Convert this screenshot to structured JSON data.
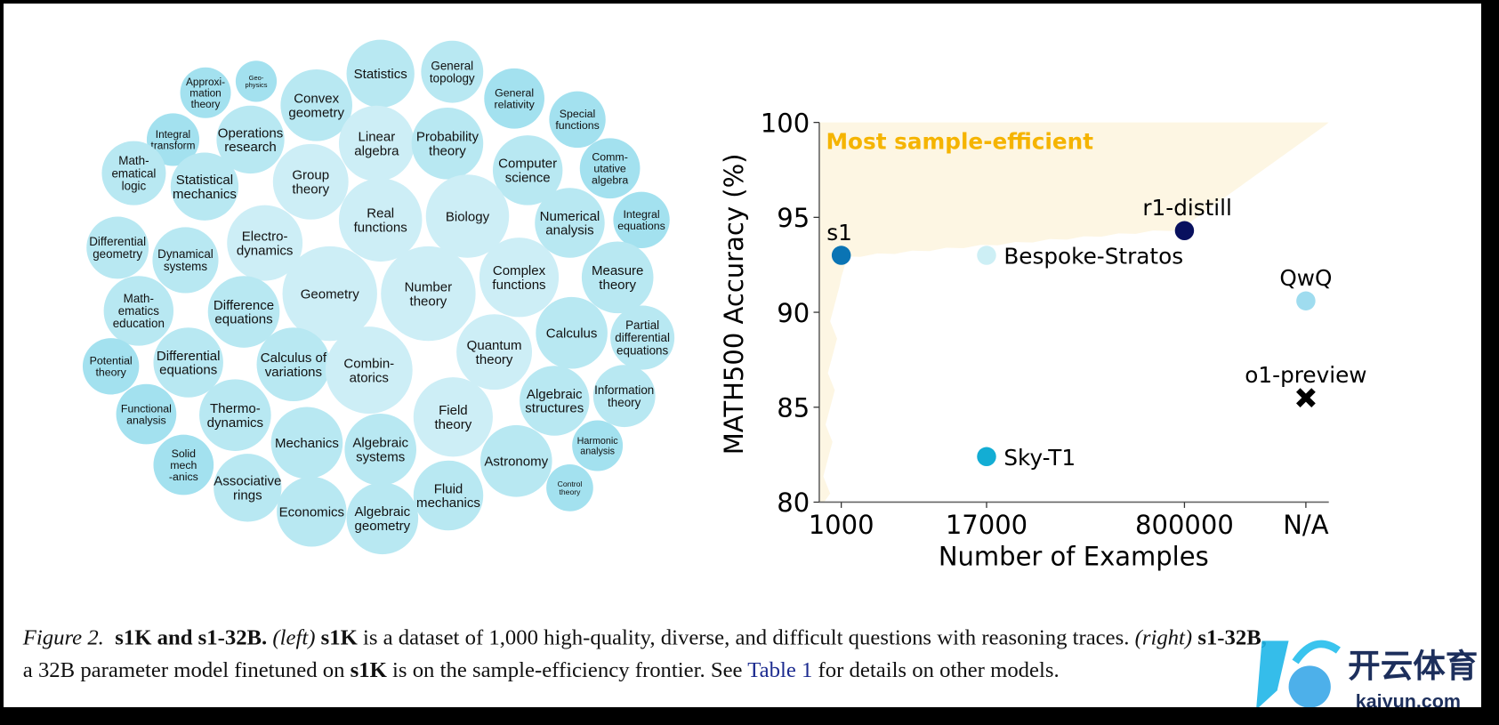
{
  "bubble_chart": {
    "palette": {
      "large": "#cdeef6",
      "medium": "#b8e8f2",
      "small": "#a3e1ef"
    },
    "bubbles": [
      {
        "label": [
          "Statistics"
        ],
        "cx": 398,
        "cy": 77,
        "r": 36
      },
      {
        "label": [
          "General",
          "topology"
        ],
        "cx": 473,
        "cy": 75,
        "r": 33
      },
      {
        "label": [
          "Approxi-",
          "mation",
          "theory"
        ],
        "cx": 215,
        "cy": 97,
        "r": 27
      },
      {
        "label": [
          "Geo-",
          "physics"
        ],
        "cx": 268,
        "cy": 85,
        "r": 22
      },
      {
        "label": [
          "Convex",
          "geometry"
        ],
        "cx": 331,
        "cy": 110,
        "r": 38
      },
      {
        "label": [
          "General",
          "relativity"
        ],
        "cx": 538,
        "cy": 103,
        "r": 32
      },
      {
        "label": [
          "Special",
          "functions"
        ],
        "cx": 604,
        "cy": 125,
        "r": 30
      },
      {
        "label": [
          "Integral",
          "transform"
        ],
        "cx": 181,
        "cy": 146,
        "r": 28
      },
      {
        "label": [
          "Operations",
          "research"
        ],
        "cx": 262,
        "cy": 146,
        "r": 36
      },
      {
        "label": [
          "Linear",
          "algebra"
        ],
        "cx": 394,
        "cy": 150,
        "r": 40
      },
      {
        "label": [
          "Probability",
          "theory"
        ],
        "cx": 468,
        "cy": 150,
        "r": 38
      },
      {
        "label": [
          "Computer",
          "science"
        ],
        "cx": 552,
        "cy": 178,
        "r": 37
      },
      {
        "label": [
          "Comm-",
          "utative",
          "algebra"
        ],
        "cx": 638,
        "cy": 176,
        "r": 32
      },
      {
        "label": [
          "Math-",
          "ematical",
          "logic"
        ],
        "cx": 140,
        "cy": 181,
        "r": 34
      },
      {
        "label": [
          "Statistical",
          "mechanics"
        ],
        "cx": 214,
        "cy": 195,
        "r": 36
      },
      {
        "label": [
          "Group",
          "theory"
        ],
        "cx": 325,
        "cy": 190,
        "r": 40
      },
      {
        "label": [
          "Real",
          "functions"
        ],
        "cx": 398,
        "cy": 230,
        "r": 44
      },
      {
        "label": [
          "Biology"
        ],
        "cx": 489,
        "cy": 226,
        "r": 44
      },
      {
        "label": [
          "Numerical",
          "analysis"
        ],
        "cx": 596,
        "cy": 233,
        "r": 37
      },
      {
        "label": [
          "Integral",
          "equations"
        ],
        "cx": 671,
        "cy": 230,
        "r": 30
      },
      {
        "label": [
          "Differential",
          "geometry"
        ],
        "cx": 123,
        "cy": 259,
        "r": 33
      },
      {
        "label": [
          "Dynamical",
          "systems"
        ],
        "cx": 194,
        "cy": 272,
        "r": 35
      },
      {
        "label": [
          "Electro-",
          "dynamics"
        ],
        "cx": 277,
        "cy": 254,
        "r": 40
      },
      {
        "label": [
          "Complex",
          "functions"
        ],
        "cx": 543,
        "cy": 290,
        "r": 42
      },
      {
        "label": [
          "Measure",
          "theory"
        ],
        "cx": 646,
        "cy": 290,
        "r": 38
      },
      {
        "label": [
          "Geometry"
        ],
        "cx": 345,
        "cy": 307,
        "r": 50
      },
      {
        "label": [
          "Number",
          "theory"
        ],
        "cx": 448,
        "cy": 307,
        "r": 50
      },
      {
        "label": [
          "Math-",
          "ematics",
          "education"
        ],
        "cx": 145,
        "cy": 325,
        "r": 37
      },
      {
        "label": [
          "Difference",
          "equations"
        ],
        "cx": 255,
        "cy": 326,
        "r": 38
      },
      {
        "label": [
          "Calculus"
        ],
        "cx": 598,
        "cy": 348,
        "r": 38
      },
      {
        "label": [
          "Partial",
          "differential",
          "equations"
        ],
        "cx": 672,
        "cy": 353,
        "r": 34
      },
      {
        "label": [
          "Potential",
          "theory"
        ],
        "cx": 116,
        "cy": 383,
        "r": 30
      },
      {
        "label": [
          "Differential",
          "equations"
        ],
        "cx": 197,
        "cy": 379,
        "r": 37
      },
      {
        "label": [
          "Calculus of",
          "variations"
        ],
        "cx": 307,
        "cy": 381,
        "r": 39
      },
      {
        "label": [
          "Combin-",
          "atorics"
        ],
        "cx": 386,
        "cy": 387,
        "r": 46
      },
      {
        "label": [
          "Quantum",
          "theory"
        ],
        "cx": 517,
        "cy": 368,
        "r": 40
      },
      {
        "label": [
          "Information",
          "theory"
        ],
        "cx": 653,
        "cy": 414,
        "r": 33
      },
      {
        "label": [
          "Algebraic",
          "structures"
        ],
        "cx": 580,
        "cy": 419,
        "r": 37
      },
      {
        "label": [
          "Functional",
          "analysis"
        ],
        "cx": 153,
        "cy": 433,
        "r": 32
      },
      {
        "label": [
          "Thermo-",
          "dynamics"
        ],
        "cx": 246,
        "cy": 434,
        "r": 38
      },
      {
        "label": [
          "Field",
          "theory"
        ],
        "cx": 474,
        "cy": 436,
        "r": 42
      },
      {
        "label": [
          "Mechanics"
        ],
        "cx": 321,
        "cy": 463,
        "r": 38
      },
      {
        "label": [
          "Algebraic",
          "systems"
        ],
        "cx": 398,
        "cy": 470,
        "r": 38
      },
      {
        "label": [
          "Harmonic",
          "analysis"
        ],
        "cx": 625,
        "cy": 466,
        "r": 27
      },
      {
        "label": [
          "Solid",
          "mech",
          "-anics"
        ],
        "cx": 192,
        "cy": 486,
        "r": 32
      },
      {
        "label": [
          "Astronomy"
        ],
        "cx": 540,
        "cy": 482,
        "r": 38
      },
      {
        "label": [
          "Associative",
          "rings"
        ],
        "cx": 259,
        "cy": 510,
        "r": 36
      },
      {
        "label": [
          "Fluid",
          "mechanics"
        ],
        "cx": 469,
        "cy": 518,
        "r": 37
      },
      {
        "label": [
          "Control",
          "theory"
        ],
        "cx": 596,
        "cy": 510,
        "r": 25
      },
      {
        "label": [
          "Economics"
        ],
        "cx": 326,
        "cy": 535,
        "r": 37
      },
      {
        "label": [
          "Algebraic",
          "geometry"
        ],
        "cx": 400,
        "cy": 542,
        "r": 38
      }
    ]
  },
  "chart_data": {
    "type": "scatter",
    "xlabel": "Number of Examples",
    "ylabel": "MATH500 Accuracy (%)",
    "x_categories": [
      "1000",
      "17000",
      "800000",
      "N/A"
    ],
    "y_ticks": [
      80,
      85,
      90,
      95,
      100
    ],
    "ylim": [
      80,
      100
    ],
    "grid": false,
    "annotation": {
      "text": "Most sample-efficient",
      "color": "#f5b400",
      "region_color": "#fdf6e3"
    },
    "points": [
      {
        "label": "s1",
        "x": "1000",
        "y": 93.0,
        "color": "#0a74b4",
        "marker": "circle"
      },
      {
        "label": "Bespoke-Stratos",
        "x": "17000",
        "y": 93.0,
        "color": "#cdeff5",
        "marker": "circle"
      },
      {
        "label": "r1-distill",
        "x": "800000",
        "y": 94.3,
        "color": "#08105e",
        "marker": "circle"
      },
      {
        "label": "QwQ",
        "x": "N/A",
        "y": 90.6,
        "color": "#9fdcef",
        "marker": "circle"
      },
      {
        "label": "o1-preview",
        "x": "N/A",
        "y": 85.5,
        "color": "#000000",
        "marker": "x"
      },
      {
        "label": "Sky-T1",
        "x": "17000",
        "y": 82.4,
        "color": "#13add4",
        "marker": "circle"
      }
    ]
  },
  "caption": {
    "fig": "Figure 2.",
    "title": "s1K and s1-32B.",
    "left": "(left)",
    "s1k": "s1K",
    "t1": "is a dataset of 1,000 high-quality, diverse, and difficult questions with reasoning traces.",
    "right": "(right)",
    "s132b": "s1-32B,",
    "t2": "a 32B parameter model finetuned on",
    "s1k2": "s1K",
    "t3": "is on the sample-efficiency frontier. See",
    "ref": "Table 1",
    "t4": "for details on other models."
  },
  "watermark": {
    "cn": "开云体育",
    "url": "kaiyun.com"
  }
}
